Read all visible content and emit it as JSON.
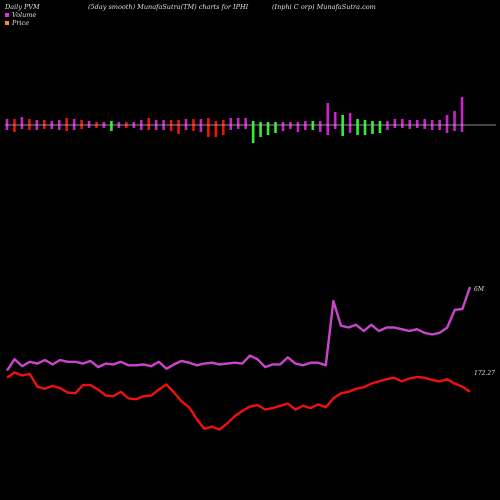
{
  "header": {
    "left": "Daily PVM",
    "mid": "(5day smooth) MunafaSutra(TM) charts for IPHI",
    "right": "(Inphi  C        orp) MunafaSutra.com"
  },
  "legend": [
    {
      "label": "Volume",
      "color": "#dd33dd"
    },
    {
      "label": "Price",
      "color": "#ff8833"
    }
  ],
  "colors": {
    "volume_up": "#cc22cc",
    "volume_down": "#33ee33",
    "volume_red": "#ee1111",
    "price_line": "#ee1111",
    "volume_line": "#cc44cc",
    "axis": "#bbbbbb"
  },
  "chart_data": {
    "type": "line",
    "labels": {
      "volume_end": "6M",
      "price_end": "172.27"
    },
    "bars": [
      {
        "up": 6,
        "down": 5,
        "c": "m"
      },
      {
        "up": 6,
        "down": 7,
        "c": "r"
      },
      {
        "up": 8,
        "down": 4,
        "c": "m"
      },
      {
        "up": 6,
        "down": 5,
        "c": "r"
      },
      {
        "up": 5,
        "down": 5,
        "c": "m"
      },
      {
        "up": 5,
        "down": 4,
        "c": "r"
      },
      {
        "up": 4,
        "down": 4,
        "c": "m"
      },
      {
        "up": 5,
        "down": 5,
        "c": "m"
      },
      {
        "up": 7,
        "down": 6,
        "c": "r"
      },
      {
        "up": 6,
        "down": 5,
        "c": "m"
      },
      {
        "up": 5,
        "down": 4,
        "c": "r"
      },
      {
        "up": 4,
        "down": 3,
        "c": "m"
      },
      {
        "up": 3,
        "down": 3,
        "c": "r"
      },
      {
        "up": 3,
        "down": 3,
        "c": "m"
      },
      {
        "up": 4,
        "down": 6,
        "c": "g"
      },
      {
        "up": 3,
        "down": 3,
        "c": "m"
      },
      {
        "up": 3,
        "down": 3,
        "c": "r"
      },
      {
        "up": 3,
        "down": 3,
        "c": "m"
      },
      {
        "up": 5,
        "down": 5,
        "c": "m"
      },
      {
        "up": 7,
        "down": 5,
        "c": "r"
      },
      {
        "up": 5,
        "down": 5,
        "c": "m"
      },
      {
        "up": 5,
        "down": 5,
        "c": "m"
      },
      {
        "up": 5,
        "down": 6,
        "c": "r"
      },
      {
        "up": 5,
        "down": 9,
        "c": "r"
      },
      {
        "up": 6,
        "down": 5,
        "c": "m"
      },
      {
        "up": 6,
        "down": 6,
        "c": "r"
      },
      {
        "up": 6,
        "down": 7,
        "c": "m"
      },
      {
        "up": 7,
        "down": 12,
        "c": "r"
      },
      {
        "up": 4,
        "down": 12,
        "c": "r"
      },
      {
        "up": 5,
        "down": 10,
        "c": "r"
      },
      {
        "up": 7,
        "down": 5,
        "c": "m"
      },
      {
        "up": 7,
        "down": 4,
        "c": "m"
      },
      {
        "up": 7,
        "down": 4,
        "c": "m"
      },
      {
        "up": 4,
        "down": 18,
        "c": "g"
      },
      {
        "up": 3,
        "down": 12,
        "c": "g"
      },
      {
        "up": 3,
        "down": 10,
        "c": "g"
      },
      {
        "up": 3,
        "down": 8,
        "c": "g"
      },
      {
        "up": 3,
        "down": 6,
        "c": "m"
      },
      {
        "up": 3,
        "down": 4,
        "c": "m"
      },
      {
        "up": 3,
        "down": 7,
        "c": "m"
      },
      {
        "up": 4,
        "down": 5,
        "c": "m"
      },
      {
        "up": 4,
        "down": 5,
        "c": "g"
      },
      {
        "up": 4,
        "down": 7,
        "c": "m"
      },
      {
        "up": 22,
        "down": 10,
        "c": "m"
      },
      {
        "up": 13,
        "down": 4,
        "c": "m"
      },
      {
        "up": 10,
        "down": 11,
        "c": "g"
      },
      {
        "up": 12,
        "down": 8,
        "c": "m"
      },
      {
        "up": 6,
        "down": 10,
        "c": "g"
      },
      {
        "up": 5,
        "down": 10,
        "c": "g"
      },
      {
        "up": 4,
        "down": 9,
        "c": "g"
      },
      {
        "up": 4,
        "down": 8,
        "c": "g"
      },
      {
        "up": 4,
        "down": 5,
        "c": "m"
      },
      {
        "up": 6,
        "down": 3,
        "c": "m"
      },
      {
        "up": 6,
        "down": 3,
        "c": "m"
      },
      {
        "up": 5,
        "down": 4,
        "c": "m"
      },
      {
        "up": 5,
        "down": 3,
        "c": "m"
      },
      {
        "up": 6,
        "down": 4,
        "c": "m"
      },
      {
        "up": 5,
        "down": 5,
        "c": "m"
      },
      {
        "up": 5,
        "down": 5,
        "c": "m"
      },
      {
        "up": 10,
        "down": 8,
        "c": "m"
      },
      {
        "up": 14,
        "down": 6,
        "c": "m"
      },
      {
        "up": 28,
        "down": 7,
        "c": "m"
      }
    ],
    "series": [
      {
        "role": "volume",
        "values": [
          5,
          18,
          10,
          15,
          13,
          17,
          12,
          17,
          15,
          15,
          13,
          16,
          9,
          13,
          12,
          15,
          11,
          11,
          12,
          10,
          15,
          7,
          12,
          16,
          14,
          11,
          13,
          14,
          12,
          13,
          14,
          13,
          22,
          18,
          9,
          12,
          12,
          20,
          13,
          11,
          14,
          14,
          11,
          84,
          56,
          54,
          57,
          50,
          57,
          50,
          54,
          54,
          52,
          50,
          52,
          48,
          46,
          48,
          54,
          74,
          75,
          100
        ]
      },
      {
        "role": "price",
        "values": [
          72,
          79,
          75,
          77,
          60,
          57,
          61,
          58,
          52,
          51,
          62,
          62,
          56,
          48,
          47,
          53,
          44,
          43,
          47,
          48,
          56,
          63,
          52,
          40,
          32,
          16,
          3,
          6,
          2,
          10,
          20,
          27,
          33,
          35,
          29,
          31,
          34,
          37,
          29,
          34,
          31,
          36,
          32,
          44,
          51,
          53,
          57,
          59,
          64,
          67,
          70,
          72,
          67,
          71,
          73,
          72,
          69,
          67,
          70,
          64,
          60,
          53
        ]
      }
    ]
  }
}
